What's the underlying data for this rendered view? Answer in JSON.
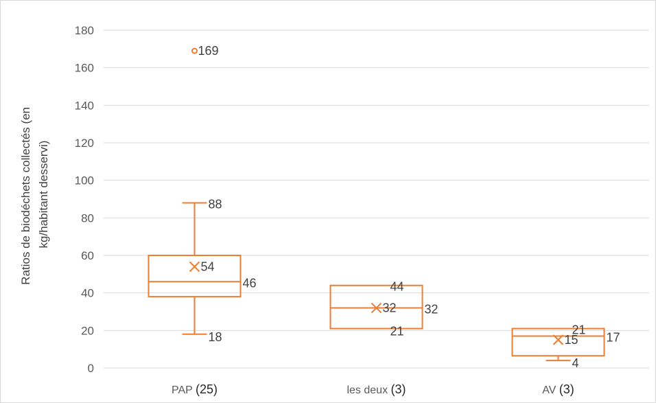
{
  "chart_data": {
    "type": "boxplot",
    "ylabel_line1": "Ratios de biodéchets collectés (en",
    "ylabel_line2": "kg/habitant desservi)",
    "ylim": [
      0,
      180
    ],
    "yticks": [
      0,
      20,
      40,
      60,
      80,
      100,
      120,
      140,
      160,
      180
    ],
    "grid": true,
    "color": "#ED7D31",
    "categories": [
      {
        "name": "PAP",
        "count": "(25)",
        "min": 18,
        "q1": 38,
        "median": 46,
        "q3": 60,
        "max": 88,
        "mean": 54,
        "outliers": [
          169
        ],
        "labels": {
          "max": "88",
          "mean": "54",
          "median": "46",
          "min": "18",
          "outlier": "169"
        }
      },
      {
        "name": "les deux",
        "count": "(3)",
        "min": 21,
        "q1": 21,
        "median": 32,
        "q3": 44,
        "max": 44,
        "mean": 32,
        "outliers": [],
        "labels": {
          "max": "44",
          "mean": "32",
          "median": "32",
          "min": "21"
        }
      },
      {
        "name": "AV",
        "count": "(3)",
        "min": 4,
        "q1": 6.5,
        "median": 17,
        "q3": 21,
        "max": 21,
        "mean": 15,
        "outliers": [],
        "labels": {
          "max": "21",
          "mean": "15",
          "median": "17",
          "min": "4"
        }
      }
    ]
  }
}
